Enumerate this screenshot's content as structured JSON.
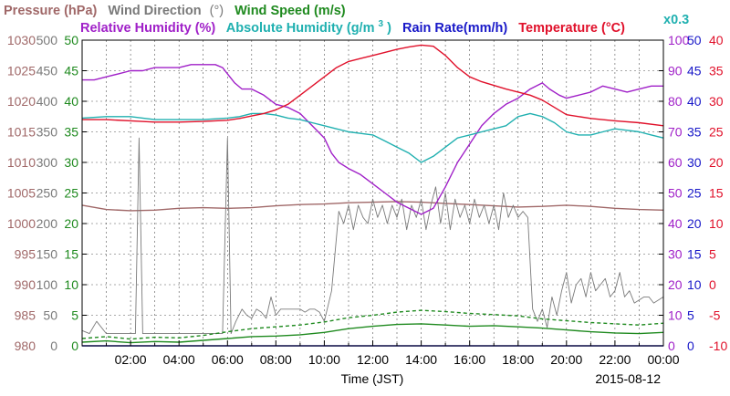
{
  "chart_data": {
    "type": "line",
    "date_label": "2015-08-12",
    "xlabel": "Time (JST)",
    "x_ticks": [
      "02:00",
      "04:00",
      "06:00",
      "08:00",
      "10:00",
      "12:00",
      "14:00",
      "16:00",
      "18:00",
      "20:00",
      "22:00",
      "00:00"
    ],
    "x_range_hours": [
      0,
      24
    ],
    "grid": true,
    "legend_row1": [
      {
        "label": "Pressure (hPa)",
        "color": "#a06868"
      },
      {
        "label": "Wind Direction",
        "color": "#7a7a7a"
      },
      {
        "label": "(°)",
        "color": "#7a7a7a"
      },
      {
        "label": "Wind Speed (m/s)",
        "color": "#1f8a1f"
      }
    ],
    "legend_row2": [
      {
        "label": "Relative Humidity (%)",
        "color": "#a020c8"
      },
      {
        "label": "Absolute Humidity (g/m",
        "color": "#20b0b0"
      },
      {
        "label": "3",
        "color": "#20b0b0"
      },
      {
        "label": ")",
        "color": "#20b0b0"
      },
      {
        "label": "Rain Rate(mm/h)",
        "color": "#1818c8"
      },
      {
        "label": "Temperature (°C)",
        "color": "#e0102a"
      }
    ],
    "scale_note": "x0.3",
    "scale_note_color": "#20b0b0",
    "axes": {
      "pressure": {
        "label": "Pressure (hPa)",
        "color": "#a06868",
        "ticks": [
          "1030",
          "1025",
          "1020",
          "1015",
          "1010",
          "1005",
          "1000",
          "995",
          "990",
          "985",
          "980"
        ],
        "range": [
          980,
          1030
        ]
      },
      "wind_direction": {
        "label": "Wind Direction (°)",
        "color": "#7a7a7a",
        "ticks": [
          "500",
          "450",
          "400",
          "350",
          "300",
          "250",
          "200",
          "150",
          "100",
          "50",
          "0"
        ],
        "range": [
          0,
          500
        ]
      },
      "wind_speed": {
        "label": "Wind Speed (m/s)",
        "color": "#1f8a1f",
        "ticks": [
          "50",
          "45",
          "40",
          "35",
          "30",
          "25",
          "20",
          "15",
          "10",
          "5",
          "0"
        ],
        "range": [
          0,
          50
        ]
      },
      "humidity": {
        "label": "Relative Humidity (%)",
        "color": "#a020c8",
        "ticks": [
          "100",
          "90",
          "80",
          "70",
          "60",
          "50",
          "40",
          "30",
          "20",
          "10",
          "0"
        ],
        "range": [
          0,
          100
        ]
      },
      "rain_rate": {
        "label": "Rain Rate(mm/h)",
        "color": "#1818c8",
        "ticks": [
          "50",
          "45",
          "40",
          "35",
          "30",
          "25",
          "20",
          "15",
          "10",
          "5",
          "0"
        ],
        "range": [
          0,
          50
        ]
      },
      "temperature": {
        "label": "Temperature (°C)",
        "color": "#e0102a",
        "ticks": [
          "40",
          "35",
          "30",
          "25",
          "20",
          "15",
          "10",
          "5",
          "0",
          "-5",
          "-10"
        ],
        "range": [
          -10,
          40
        ]
      }
    },
    "series": [
      {
        "name": "Pressure (hPa)",
        "color": "#a06868",
        "axis": "pressure",
        "x": [
          0,
          1,
          2,
          3,
          4,
          5,
          6,
          7,
          8,
          9,
          10,
          11,
          12,
          13,
          14,
          15,
          16,
          17,
          18,
          19,
          20,
          21,
          22,
          23,
          24
        ],
        "y": [
          1003,
          1002.3,
          1002.1,
          1002.2,
          1002.5,
          1002.6,
          1002.5,
          1002.6,
          1002.9,
          1003.1,
          1003.2,
          1003.4,
          1003.5,
          1003.6,
          1003.5,
          1003.3,
          1003.1,
          1002.9,
          1002.7,
          1002.8,
          1003,
          1002.8,
          1002.5,
          1002.3,
          1002.2
        ]
      },
      {
        "name": "Wind Direction (°)",
        "color": "#7a7a7a",
        "axis": "wind_direction",
        "x": [
          0,
          0.3,
          0.6,
          1,
          1.4,
          1.8,
          2.2,
          2.35,
          2.5,
          2.7,
          3,
          3.5,
          4,
          4.5,
          5,
          5.5,
          5.8,
          6,
          6.15,
          6.35,
          6.6,
          6.8,
          7,
          7.2,
          7.4,
          7.6,
          7.8,
          8,
          8.2,
          8.4,
          8.6,
          8.8,
          9,
          9.2,
          9.4,
          9.6,
          9.8,
          10,
          10.3,
          10.6,
          10.8,
          11,
          11.2,
          11.4,
          11.6,
          11.8,
          12,
          12.2,
          12.4,
          12.6,
          12.8,
          13,
          13.2,
          13.4,
          13.6,
          13.8,
          14,
          14.2,
          14.4,
          14.6,
          14.8,
          15,
          15.2,
          15.4,
          15.6,
          15.8,
          16,
          16.2,
          16.4,
          16.6,
          16.8,
          17,
          17.2,
          17.4,
          17.6,
          17.8,
          18,
          18.2,
          18.4,
          18.6,
          18.8,
          19,
          19.2,
          19.4,
          19.6,
          19.8,
          20,
          20.2,
          20.4,
          20.6,
          20.8,
          21,
          21.2,
          21.4,
          21.6,
          21.8,
          22,
          22.2,
          22.4,
          22.6,
          22.8,
          23,
          23.2,
          23.4,
          23.6,
          23.8,
          24
        ],
        "y": [
          25,
          20,
          40,
          20,
          20,
          20,
          20,
          340,
          20,
          20,
          20,
          20,
          20,
          20,
          20,
          20,
          20,
          340,
          20,
          40,
          60,
          50,
          45,
          60,
          55,
          45,
          80,
          50,
          60,
          60,
          60,
          60,
          60,
          55,
          60,
          60,
          55,
          40,
          90,
          220,
          200,
          230,
          190,
          230,
          210,
          200,
          240,
          210,
          230,
          200,
          230,
          210,
          240,
          190,
          230,
          210,
          240,
          190,
          230,
          260,
          200,
          250,
          190,
          240,
          210,
          230,
          200,
          240,
          210,
          230,
          200,
          230,
          190,
          250,
          210,
          230,
          210,
          220,
          210,
          60,
          40,
          60,
          30,
          80,
          50,
          90,
          120,
          70,
          100,
          110,
          80,
          120,
          90,
          100,
          110,
          80,
          90,
          120,
          80,
          90,
          70,
          75,
          80,
          80,
          70,
          75,
          80
        ]
      },
      {
        "name": "Wind Speed (m/s)",
        "color": "#1f8a1f",
        "axis": "wind_speed",
        "x": [
          0,
          1,
          2,
          3,
          4,
          5,
          6,
          7,
          8,
          9,
          10,
          11,
          12,
          13,
          14,
          15,
          16,
          17,
          18,
          19,
          20,
          21,
          22,
          23,
          24
        ],
        "y": [
          0.6,
          0.8,
          0.5,
          0.7,
          0.6,
          0.9,
          1.2,
          1.5,
          1.6,
          1.8,
          2.2,
          2.8,
          3.2,
          3.5,
          3.6,
          3.4,
          3.2,
          3.3,
          3.1,
          2.9,
          2.6,
          2.3,
          2.1,
          2,
          2.2
        ]
      },
      {
        "name": "Wind Gust (m/s)",
        "color": "#1f8a1f",
        "axis": "wind_speed",
        "x": [
          0,
          1,
          2,
          3,
          4,
          5,
          6,
          7,
          8,
          9,
          10,
          11,
          12,
          13,
          14,
          15,
          16,
          17,
          18,
          19,
          20,
          21,
          22,
          23,
          24
        ],
        "y": [
          1.2,
          1.5,
          1.1,
          1.4,
          1.3,
          1.7,
          2.3,
          2.8,
          3.1,
          3.4,
          3.9,
          4.6,
          5,
          5.5,
          5.8,
          5.6,
          5.3,
          5.1,
          4.9,
          4.4,
          4.1,
          3.8,
          3.6,
          3.4,
          3.7
        ]
      },
      {
        "name": "Relative Humidity (%)",
        "color": "#a020c8",
        "axis": "humidity",
        "x": [
          0,
          0.5,
          1,
          1.5,
          2,
          2.5,
          3,
          3.5,
          4,
          4.5,
          5,
          5.5,
          5.8,
          6,
          6.3,
          6.6,
          7,
          7.5,
          8,
          8.5,
          9,
          9.5,
          10,
          10.3,
          10.6,
          11,
          11.5,
          12,
          12.5,
          13,
          13.5,
          14,
          14.5,
          15,
          15.5,
          16,
          16.5,
          17,
          17.5,
          18,
          18.5,
          19,
          19.3,
          19.7,
          20,
          20.5,
          21,
          21.5,
          22,
          22.5,
          23,
          23.5,
          24
        ],
        "y": [
          87,
          87,
          88,
          89,
          90,
          90,
          91,
          91,
          91,
          92,
          92,
          92,
          91,
          89,
          86,
          84,
          84,
          82,
          79,
          78,
          76,
          72,
          68,
          63,
          60,
          58,
          56,
          53,
          50,
          47,
          45,
          43,
          45,
          52,
          60,
          66,
          72,
          76,
          79,
          81,
          84,
          86,
          84,
          82,
          81,
          82,
          83,
          85,
          84,
          83,
          84,
          85,
          85
        ]
      },
      {
        "name": "Absolute Humidity (g/m3)",
        "color": "#20b0b0",
        "axis": "humidity",
        "x": [
          0,
          1,
          2,
          3,
          4,
          5,
          6,
          6.5,
          7,
          7.5,
          8,
          8.5,
          9,
          9.5,
          10,
          10.5,
          11,
          11.5,
          12,
          12.5,
          13,
          13.5,
          14,
          14.5,
          15,
          15.5,
          16,
          16.5,
          17,
          17.5,
          18,
          18.5,
          19,
          19.5,
          20,
          20.5,
          21,
          21.5,
          22,
          22.5,
          23,
          23.5,
          24
        ],
        "y": [
          74.5,
          75,
          75,
          74,
          74,
          74,
          74.5,
          75,
          76,
          76,
          75.5,
          74.5,
          74,
          73,
          72,
          71,
          70,
          69.5,
          69,
          67,
          65,
          63,
          60,
          62,
          65,
          68,
          69,
          70,
          71,
          72,
          75,
          76,
          75,
          73,
          70,
          69,
          69,
          70,
          71,
          70.5,
          70,
          69,
          68
        ]
      },
      {
        "name": "Rain Rate(mm/h)",
        "color": "#1818c8",
        "axis": "rain_rate",
        "x": [
          0,
          24
        ],
        "y": [
          0,
          0
        ]
      },
      {
        "name": "Temperature (°C)",
        "color": "#e0102a",
        "axis": "temperature",
        "x": [
          0,
          1,
          2,
          3,
          4,
          5,
          6,
          6.5,
          7,
          7.5,
          8,
          8.5,
          9,
          9.5,
          10,
          10.5,
          11,
          11.5,
          12,
          12.5,
          13,
          13.5,
          14,
          14.5,
          15,
          15.5,
          16,
          16.5,
          17,
          17.5,
          18,
          18.5,
          19,
          19.5,
          20,
          21,
          22,
          23,
          24
        ],
        "y": [
          27,
          27,
          26.8,
          26.6,
          26.6,
          26.7,
          26.9,
          27.2,
          27.6,
          28,
          28.6,
          29.5,
          31,
          32.5,
          34,
          35.5,
          36.5,
          37,
          37.5,
          38,
          38.5,
          38.9,
          39.2,
          39,
          37.5,
          35.5,
          34,
          33.2,
          32.6,
          32,
          31.5,
          31,
          30.2,
          29,
          27.8,
          27.2,
          26.8,
          26.5,
          26
        ]
      }
    ]
  }
}
